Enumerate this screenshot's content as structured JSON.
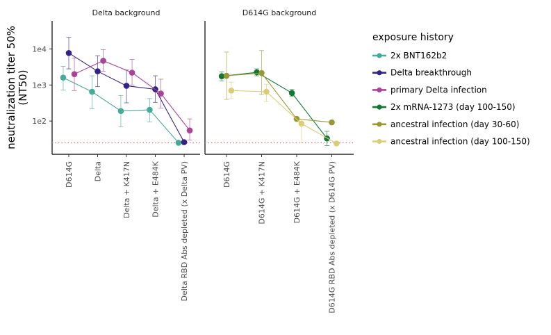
{
  "chart_data": {
    "type": "line",
    "ylabel_line1": "neutralization titer 50%",
    "ylabel_line2": "(NT50)",
    "y_scale": "log10",
    "ylim": [
      12,
      60000
    ],
    "y_ticks": [
      {
        "value": 100,
        "label": "1e2"
      },
      {
        "value": 1000,
        "label": "1e3"
      },
      {
        "value": 10000,
        "label": "1e4"
      }
    ],
    "limit_of_detection": 25,
    "limit_line_color": "#d6707a",
    "legend": {
      "title": "exposure history",
      "position": "right",
      "items": [
        {
          "label": "2x BNT162b2",
          "color": "#44aa99"
        },
        {
          "label": "Delta breakthrough",
          "color": "#332288"
        },
        {
          "label": "primary Delta infection",
          "color": "#aa4499"
        },
        {
          "label": "2x mRNA-1273 (day 100-150)",
          "color": "#117733"
        },
        {
          "label": "ancestral infection (day 30-60)",
          "color": "#999933"
        },
        {
          "label": "ancestral infection (day 100-150)",
          "color": "#ddcc77"
        }
      ]
    },
    "facets": [
      {
        "title": "Delta background",
        "categories": [
          "D614G",
          "Delta",
          "Delta + K417N",
          "Delta + E484K",
          "Delta RBD Abs depleted (x Delta PV)"
        ],
        "series": [
          {
            "name": "2x BNT162b2",
            "color": "#44aa99",
            "dodge": -0.35,
            "values": [
              1600,
              650,
              190,
              205,
              25
            ],
            "lower": [
              720,
              220,
              70,
              95,
              24
            ],
            "upper": [
              3300,
              1800,
              510,
              420,
              27
            ]
          },
          {
            "name": "Delta breakthrough",
            "color": "#332288",
            "dodge": 0.0,
            "values": [
              7700,
              2400,
              950,
              760,
              26
            ],
            "lower": [
              2800,
              900,
              320,
              330,
              25
            ],
            "upper": [
              21000,
              6500,
              2600,
              1800,
              27
            ]
          },
          {
            "name": "primary Delta infection",
            "color": "#aa4499",
            "dodge": 0.35,
            "values": [
              2000,
              4700,
              2200,
              580,
              55
            ],
            "lower": [
              700,
              2400,
              1000,
              230,
              30
            ],
            "upper": [
              5600,
              9500,
              5100,
              1450,
              115
            ]
          }
        ]
      },
      {
        "title": "D614G background",
        "categories": [
          "D614G",
          "D614G + K417N",
          "D614G + E484K",
          "D614G RBD Abs depleted (x D614G PV)"
        ],
        "series": [
          {
            "name": "2x mRNA-1273 (day 100-150)",
            "color": "#117733",
            "dodge": -0.3,
            "values": [
              1750,
              2250,
              600,
              33
            ],
            "lower": [
              1300,
              1800,
              480,
              21
            ],
            "upper": [
              2300,
              2800,
              750,
              52
            ]
          },
          {
            "name": "ancestral infection (day 30-60)",
            "color": "#999933",
            "dodge": 0.0,
            "values": [
              1800,
              2150,
              115,
              92
            ],
            "lower": [
              400,
              550,
              110,
              88
            ],
            "upper": [
              8200,
              9000,
              125,
              97
            ]
          },
          {
            "name": "ancestral infection (day 100-150)",
            "color": "#ddcc77",
            "dodge": 0.3,
            "values": [
              700,
              650,
              85,
              24
            ],
            "lower": [
              420,
              350,
              25,
              23
            ],
            "upper": [
              1200,
              1050,
              110,
              25
            ]
          }
        ]
      }
    ]
  }
}
